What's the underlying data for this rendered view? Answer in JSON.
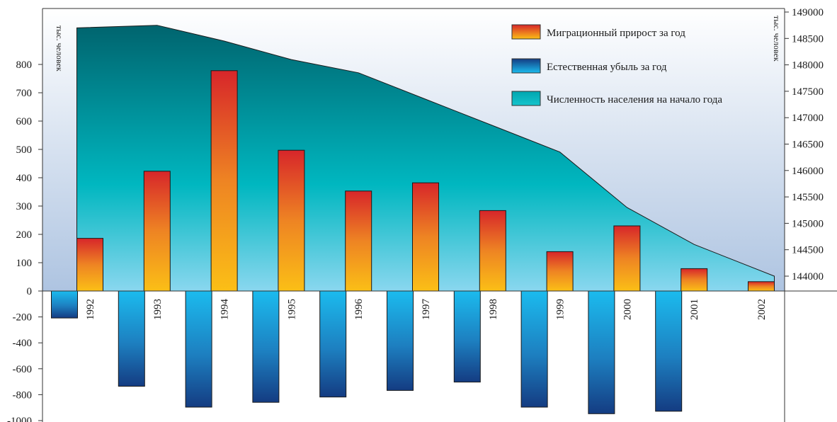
{
  "chart_data": {
    "type": "bar",
    "categories": [
      "1992",
      "1993",
      "1994",
      "1995",
      "1996",
      "1997",
      "1998",
      "1999",
      "2000",
      "2001",
      "2002"
    ],
    "series": [
      {
        "name": "Миграционный прирост за год",
        "axis": "left",
        "values": [
          186,
          423,
          778,
          497,
          353,
          382,
          284,
          139,
          230,
          79,
          33
        ]
      },
      {
        "name": "Естественная убыль за год",
        "axis": "left",
        "values": [
          -208,
          -735,
          -896,
          -859,
          -818,
          -767,
          -703,
          -896,
          -947,
          -928,
          null
        ]
      },
      {
        "name": "Численность населения на начало года",
        "axis": "right",
        "type": "area",
        "values": [
          148700,
          148750,
          148450,
          148100,
          147850,
          147350,
          146850,
          146350,
          145300,
          144600,
          144000
        ]
      }
    ],
    "ylabel_left": "тыс. человек",
    "ylabel_right": "тыс. человек",
    "yticks_left_positive": [
      "0",
      "100",
      "200",
      "300",
      "400",
      "500",
      "600",
      "700",
      "800"
    ],
    "yticks_left_negative": [
      "-200",
      "-400",
      "-600",
      "-800",
      "-1000"
    ],
    "yticks_right": [
      "144000",
      "144500",
      "145000",
      "145500",
      "146000",
      "146500",
      "147000",
      "147500",
      "148000",
      "148500",
      "149000"
    ],
    "ylim_left_positive": [
      0,
      800
    ],
    "ylim_left_negative": [
      -1000,
      0
    ],
    "ylim_right": [
      143750,
      149000
    ],
    "legend_position": "top-right",
    "colors": {
      "migration_top": "#d7262a",
      "migration_bottom": "#fbbf16",
      "loss_top": "#1bbbee",
      "loss_bottom": "#143c82",
      "area_top": "#00646e",
      "area_mid": "#00b7c0",
      "area_bottom": "#8ad7ef",
      "background_top": "#ffffff",
      "background_bottom": "#aec4e1"
    }
  }
}
